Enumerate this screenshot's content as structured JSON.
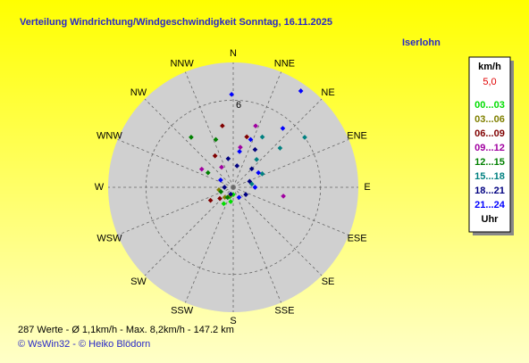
{
  "chart_data": {
    "type": "polar_scatter",
    "title": "Verteilung Windrichtung/Windgeschwindigkeit  Sonntag, 16.11.2025",
    "location": "Iserlohn",
    "directions": [
      "N",
      "NNE",
      "NE",
      "ENE",
      "E",
      "ESE",
      "SE",
      "SSE",
      "S",
      "SSW",
      "SW",
      "WSW",
      "W",
      "WNW",
      "NW",
      "NNW"
    ],
    "rlim": [
      0,
      8.6
    ],
    "rticks": [
      6
    ],
    "grid": true,
    "unit_label": "km/h",
    "legend_value": "5,0",
    "legend_footer": "Uhr",
    "series": [
      {
        "name": "00...03",
        "color": "#00dd00",
        "theta": [
          200,
          210,
          190,
          180
        ],
        "values": [
          0.7,
          1.3,
          1.0,
          0.5
        ]
      },
      {
        "name": "03...06",
        "color": "#808000",
        "theta": [
          220,
          200,
          260
        ],
        "values": [
          0.9,
          0.6,
          1.0
        ]
      },
      {
        "name": "06...09",
        "color": "#800000",
        "theta": [
          350,
          230,
          330,
          15,
          240
        ],
        "values": [
          4.3,
          1.2,
          2.5,
          3.6,
          1.8
        ]
      },
      {
        "name": "09...12",
        "color": "#a000a0",
        "theta": [
          10,
          100,
          300,
          20,
          330
        ],
        "values": [
          2.8,
          3.5,
          2.5,
          4.5,
          1.6
        ]
      },
      {
        "name": "12...15",
        "color": "#008000",
        "theta": [
          320,
          300,
          210,
          250,
          340
        ],
        "values": [
          4.5,
          2.0,
          0.8,
          0.9,
          3.5
        ]
      },
      {
        "name": "15...18",
        "color": "#008080",
        "theta": [
          50,
          55,
          40,
          65,
          80,
          30
        ],
        "values": [
          4.2,
          6.0,
          2.5,
          2.2,
          1.3,
          4.0
        ]
      },
      {
        "name": "18...21",
        "color": "#000080",
        "theta": [
          30,
          45,
          10,
          70,
          350,
          120,
          200,
          270
        ],
        "values": [
          3.0,
          1.8,
          1.5,
          1.2,
          2.0,
          1.0,
          0.5,
          0.6
        ]
      },
      {
        "name": "21...24",
        "color": "#0000ff",
        "theta": [
          35,
          359,
          40,
          20,
          60,
          90,
          150,
          300,
          10
        ],
        "values": [
          8.1,
          6.4,
          5.3,
          3.5,
          2.0,
          1.5,
          0.8,
          1.0,
          2.5
        ]
      }
    ],
    "footer": "287 Werte   -   Ø 1,1km/h  -  Max. 8,2km/h   -   147.2 km",
    "credit": "© WsWin32  -  © Heiko Blödorn"
  }
}
